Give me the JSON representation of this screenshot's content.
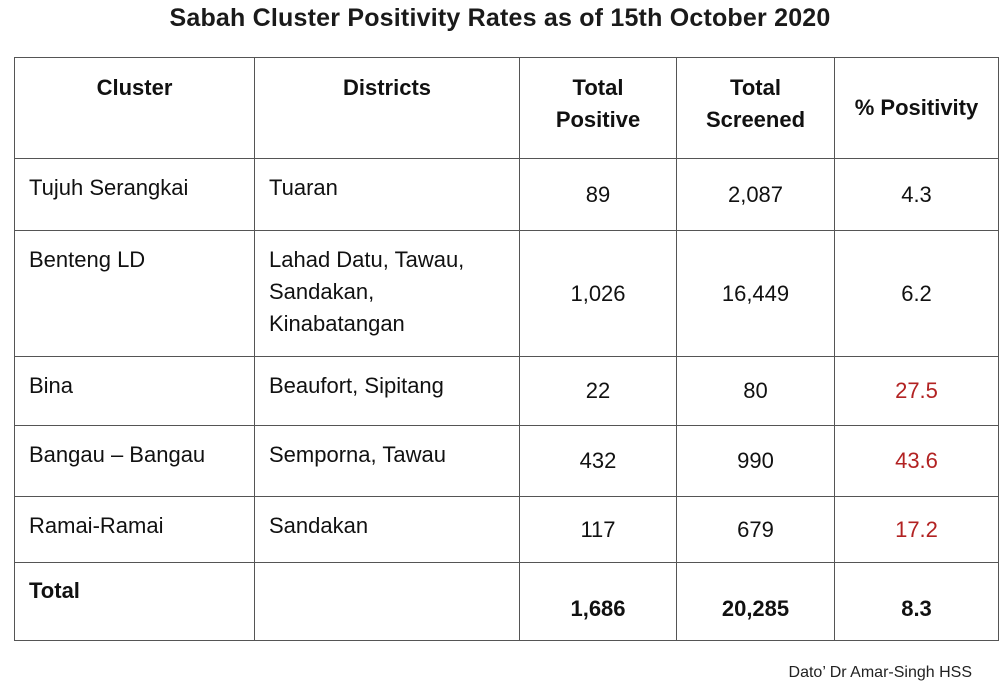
{
  "title": "Sabah Cluster Positivity Rates as of 15th October 2020",
  "headers": {
    "cluster": "Cluster",
    "districts": "Districts",
    "total_positive_1": "Total",
    "total_positive_2": "Positive",
    "total_screened_1": "Total",
    "total_screened_2": "Screened",
    "positivity": "% Positivity"
  },
  "rows": [
    {
      "cluster": "Tujuh Serangkai",
      "districts": [
        "Tuaran"
      ],
      "total_positive": "89",
      "total_screened": "2,087",
      "positivity": "4.3",
      "positivity_color": "#111111"
    },
    {
      "cluster": "Benteng LD",
      "districts": [
        "Lahad Datu, Tawau,",
        "Sandakan,",
        "Kinabatangan"
      ],
      "total_positive": "1,026",
      "total_screened": "16,449",
      "positivity": "6.2",
      "positivity_color": "#111111"
    },
    {
      "cluster": "Bina",
      "districts": [
        "Beaufort, Sipitang"
      ],
      "total_positive": "22",
      "total_screened": "80",
      "positivity": "27.5",
      "positivity_color": "#b22222"
    },
    {
      "cluster": "Bangau – Bangau",
      "districts": [
        "Semporna, Tawau"
      ],
      "total_positive": "432",
      "total_screened": "990",
      "positivity": "43.6",
      "positivity_color": "#b22222"
    },
    {
      "cluster": "Ramai-Ramai",
      "districts": [
        "Sandakan"
      ],
      "total_positive": "117",
      "total_screened": "679",
      "positivity": "17.2",
      "positivity_color": "#b22222"
    }
  ],
  "total": {
    "label": "Total",
    "districts": "",
    "total_positive": "1,686",
    "total_screened": "20,285",
    "positivity": "8.3"
  },
  "credit": "Dato’ Dr Amar-Singh HSS"
}
